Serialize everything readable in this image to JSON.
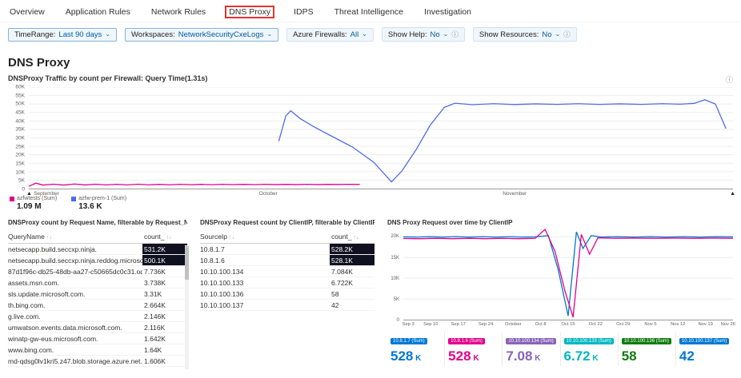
{
  "tabs": {
    "items": [
      "Overview",
      "Application Rules",
      "Network Rules",
      "DNS Proxy",
      "IDPS",
      "Threat Intelligence",
      "Investigation"
    ],
    "selected": "DNS Proxy"
  },
  "filters": [
    {
      "label": "TimeRange:",
      "value": "Last 90 days",
      "pinned": true,
      "chevron": true
    },
    {
      "label": "Workspaces:",
      "value": "NetworkSecurityCxeLogs",
      "pinned": true,
      "chevron": true
    },
    {
      "label": "Azure Firewalls:",
      "value": "All",
      "pinned": false,
      "chevron": true
    },
    {
      "label": "Show Help:",
      "value": "No",
      "pinned": false,
      "chevron": true,
      "info": true
    },
    {
      "label": "Show Resources:",
      "value": "No",
      "pinned": false,
      "chevron": true,
      "info": true
    }
  ],
  "page": {
    "title": "DNS Proxy"
  },
  "panels": {
    "requests_table": {
      "title": "DNSProxy count by Request Name, filterable by Request_Name",
      "columns": [
        "QueryName",
        "count_"
      ],
      "rows": [
        {
          "name": "netsecapp.build.seccxp.ninja.",
          "count": "531.2K",
          "heat": true
        },
        {
          "name": "netsecapp.build.seccxp.ninja.reddog.microsoft.com.",
          "count": "500.1K",
          "heat": true
        },
        {
          "name": "87d1f96c-db25-48db-aa27-c50665dc0c31.ods.opinsights...",
          "count": "7.736K"
        },
        {
          "name": "assets.msn.com.",
          "count": "3.738K"
        },
        {
          "name": "sls.update.microsoft.com.",
          "count": "3.31K"
        },
        {
          "name": "th.bing.com.",
          "count": "2.664K"
        },
        {
          "name": "g.live.com.",
          "count": "2.146K"
        },
        {
          "name": "umwatson.events.data.microsoft.com.",
          "count": "2.116K"
        },
        {
          "name": "winatp-gw-eus.microsoft.com.",
          "count": "1.642K"
        },
        {
          "name": "www.bing.com.",
          "count": "1.64K"
        },
        {
          "name": "md-qdsg0lv1kri5.z47.blob.storage.azure.net.",
          "count": "1.606K"
        }
      ]
    },
    "clientip_table": {
      "title": "DNSProxy Request count by ClientIP, filterable by ClientIP",
      "columns": [
        "SourceIp",
        "count_"
      ],
      "rows": [
        {
          "name": "10.8.1.7",
          "count": "528.2K",
          "heat": true
        },
        {
          "name": "10.8.1.6",
          "count": "528.1K",
          "heat": true
        },
        {
          "name": "10.10.100.134",
          "count": "7.084K"
        },
        {
          "name": "10.10.100.133",
          "count": "6.722K"
        },
        {
          "name": "10.10.100.136",
          "count": "58"
        },
        {
          "name": "10.10.100.137",
          "count": "42"
        }
      ]
    }
  },
  "tiles": [
    {
      "label": "10.8.1.7 (Sum)",
      "value": "528",
      "unit": "K",
      "color": "#0078d4"
    },
    {
      "label": "10.8.1.6 (Sum)",
      "value": "528",
      "unit": "K",
      "color": "#e3008c"
    },
    {
      "label": "10.10.100.134 (Sum)",
      "value": "7.08",
      "unit": "K",
      "color": "#8764b8"
    },
    {
      "label": "10.10.100.133 (Sum)",
      "value": "6.72",
      "unit": "K",
      "color": "#00b7c3"
    },
    {
      "label": "10.10.100.136 (Sum)",
      "value": "58",
      "unit": "",
      "color": "#107c10"
    },
    {
      "label": "10.10.100.137 (Sum)",
      "value": "42",
      "unit": "",
      "color": "#0078d4"
    }
  ],
  "chart_data": [
    {
      "type": "line",
      "title": "DNSProxy Traffic by count per Firewall: Query Time(1.31s)",
      "ylim": [
        0,
        60000
      ],
      "grid": true,
      "brush": true,
      "legend_position": "bottom-left",
      "yticks": [
        {
          "v": 0,
          "label": "0"
        },
        {
          "v": 5000,
          "label": "5K"
        },
        {
          "v": 10000,
          "label": "10K"
        },
        {
          "v": 15000,
          "label": "15K"
        },
        {
          "v": 20000,
          "label": "20K"
        },
        {
          "v": 25000,
          "label": "25K"
        },
        {
          "v": 30000,
          "label": "30K"
        },
        {
          "v": 35000,
          "label": "35K"
        },
        {
          "v": 40000,
          "label": "40K"
        },
        {
          "v": 45000,
          "label": "45K"
        },
        {
          "v": 50000,
          "label": "50K"
        },
        {
          "v": 55000,
          "label": "55K"
        },
        {
          "v": 60000,
          "label": "60K"
        }
      ],
      "xticks": [
        {
          "pos": 2.5,
          "label": "September"
        },
        {
          "pos": 34,
          "label": "October"
        },
        {
          "pos": 69,
          "label": "November"
        }
      ],
      "series": [
        {
          "name": "azfwtests (Sum)",
          "total": "1.09 M",
          "color": "#e3008c",
          "points": [
            [
              0,
              1400
            ],
            [
              1,
              3200
            ],
            [
              2,
              2100
            ],
            [
              3.5,
              2600
            ],
            [
              5,
              2100
            ],
            [
              6.5,
              2700
            ],
            [
              8,
              2150
            ],
            [
              9.5,
              2600
            ],
            [
              11,
              2200
            ],
            [
              12.5,
              2550
            ],
            [
              14,
              2200
            ],
            [
              15.5,
              2600
            ],
            [
              17,
              2250
            ],
            [
              18.5,
              2500
            ],
            [
              20,
              2250
            ],
            [
              21.5,
              2550
            ],
            [
              23,
              2300
            ],
            [
              24.5,
              2500
            ],
            [
              26,
              2300
            ],
            [
              27.5,
              2550
            ],
            [
              29,
              2350
            ],
            [
              30.5,
              2500
            ],
            [
              32,
              2350
            ],
            [
              33.5,
              2550
            ],
            [
              35,
              2400
            ],
            [
              36.5,
              2500
            ],
            [
              38,
              2400
            ],
            [
              39.5,
              2550
            ],
            [
              41,
              2400
            ],
            [
              42.5,
              2500
            ],
            [
              44,
              2450
            ],
            [
              45.5,
              2550
            ],
            [
              47,
              2450
            ]
          ]
        },
        {
          "name": "azfw-prem-1 (Sum)",
          "total": "13.6 K",
          "color": "#4f6bed",
          "points": [
            [
              35.5,
              28000
            ],
            [
              36.5,
              43000
            ],
            [
              37.2,
              46000
            ],
            [
              38.5,
              41500
            ],
            [
              40.5,
              36500
            ],
            [
              43,
              31000
            ],
            [
              46,
              24500
            ],
            [
              49,
              15500
            ],
            [
              51.5,
              4000
            ],
            [
              53,
              10500
            ],
            [
              55,
              23000
            ],
            [
              57,
              37500
            ],
            [
              59,
              48000
            ],
            [
              60.5,
              50500
            ],
            [
              63,
              49600
            ],
            [
              66,
              50200
            ],
            [
              69,
              49700
            ],
            [
              72,
              50100
            ],
            [
              75,
              49800
            ],
            [
              78,
              50200
            ],
            [
              81,
              49800
            ],
            [
              84,
              50100
            ],
            [
              87,
              49800
            ],
            [
              90,
              50200
            ],
            [
              92.5,
              49900
            ],
            [
              94.5,
              50400
            ],
            [
              96,
              52500
            ],
            [
              97.5,
              50000
            ],
            [
              99,
              35500
            ]
          ]
        }
      ]
    },
    {
      "type": "line",
      "title": "DNS Proxy Request over time by ClientIP",
      "ylim": [
        0,
        22000
      ],
      "grid": true,
      "brush": false,
      "yticks": [
        {
          "v": 0,
          "label": "0"
        },
        {
          "v": 5000,
          "label": "5K"
        },
        {
          "v": 10000,
          "label": "10K"
        },
        {
          "v": 15000,
          "label": "15K"
        },
        {
          "v": 20000,
          "label": "20K"
        }
      ],
      "xticks": [
        {
          "pos": 1.5,
          "label": "Sep 3"
        },
        {
          "pos": 8.33,
          "label": "Sep 10"
        },
        {
          "pos": 16.67,
          "label": "Sep 17"
        },
        {
          "pos": 25,
          "label": "Sep 24"
        },
        {
          "pos": 33.33,
          "label": "October"
        },
        {
          "pos": 41.67,
          "label": "Oct 8"
        },
        {
          "pos": 50,
          "label": "Oct 15"
        },
        {
          "pos": 58.33,
          "label": "Oct 22"
        },
        {
          "pos": 66.67,
          "label": "Oct 29"
        },
        {
          "pos": 75,
          "label": "Nov 5"
        },
        {
          "pos": 83.33,
          "label": "Nov 12"
        },
        {
          "pos": 91.67,
          "label": "Nov 19"
        },
        {
          "pos": 98.5,
          "label": "Nov 26"
        }
      ],
      "series": [
        {
          "name": "10.8.1.7 (Sum)",
          "total": "528 K",
          "color": "#0078d4",
          "points": [
            [
              0,
              20000
            ],
            [
              4,
              19950
            ],
            [
              8,
              20050
            ],
            [
              12,
              19950
            ],
            [
              16,
              20050
            ],
            [
              20,
              19950
            ],
            [
              24,
              20050
            ],
            [
              28,
              19950
            ],
            [
              32,
              20050
            ],
            [
              36,
              19950
            ],
            [
              40,
              20000
            ],
            [
              44,
              20300
            ],
            [
              47,
              12000
            ],
            [
              50,
              900
            ],
            [
              52.5,
              21200
            ],
            [
              54.5,
              17200
            ],
            [
              57,
              20300
            ],
            [
              60,
              19950
            ],
            [
              65,
              20050
            ],
            [
              70,
              19950
            ],
            [
              75,
              20050
            ],
            [
              80,
              19950
            ],
            [
              85,
              20050
            ],
            [
              90,
              19950
            ],
            [
              95,
              20050
            ],
            [
              100,
              20000
            ]
          ]
        },
        {
          "name": "10.8.1.6 (Sum)",
          "total": "528 K",
          "color": "#e3008c",
          "points": [
            [
              0,
              19600
            ],
            [
              5,
              19550
            ],
            [
              10,
              19650
            ],
            [
              15,
              19550
            ],
            [
              20,
              19650
            ],
            [
              25,
              19550
            ],
            [
              30,
              19650
            ],
            [
              35,
              19550
            ],
            [
              40,
              19650
            ],
            [
              43,
              21800
            ],
            [
              46,
              16500
            ],
            [
              49,
              7000
            ],
            [
              51.5,
              600
            ],
            [
              54,
              20600
            ],
            [
              56.5,
              15800
            ],
            [
              59,
              19750
            ],
            [
              64,
              19650
            ],
            [
              70,
              19700
            ],
            [
              76,
              19650
            ],
            [
              82,
              19700
            ],
            [
              88,
              19650
            ],
            [
              94,
              19700
            ],
            [
              100,
              19650
            ]
          ]
        }
      ]
    }
  ]
}
